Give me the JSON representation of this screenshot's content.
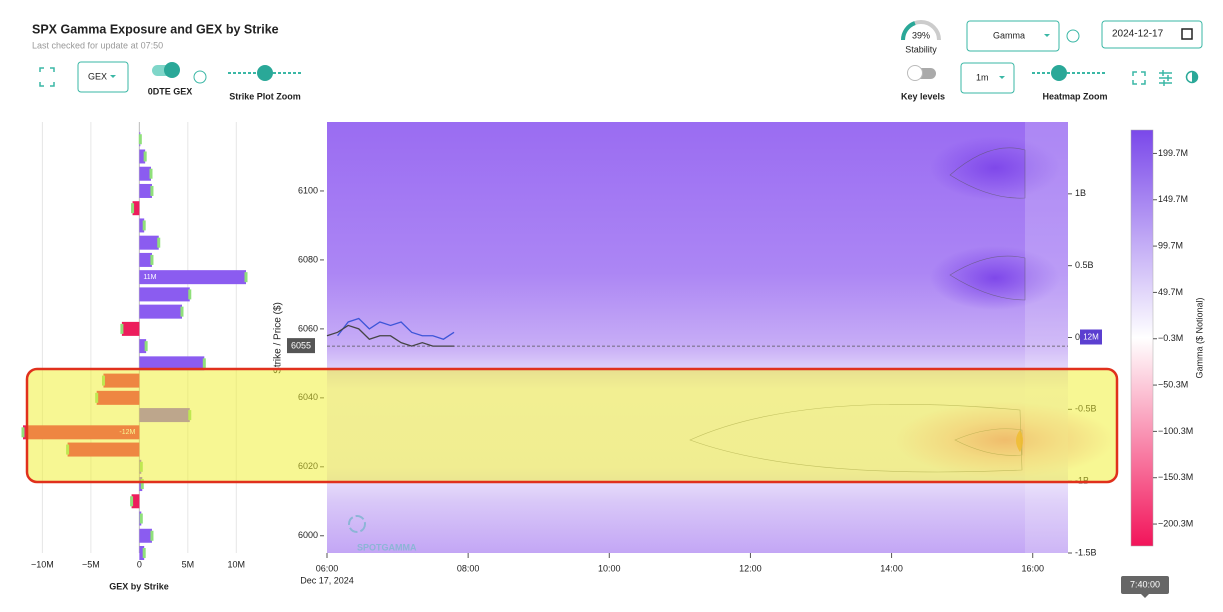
{
  "header": {
    "title": "SPX Gamma Exposure and GEX by Strike",
    "subtitle": "Last checked for update at 07:50"
  },
  "controls": {
    "gex_select": "GEX",
    "odte_label": "0DTE GEX",
    "strike_zoom_label": "Strike Plot Zoom",
    "stability": {
      "value": 39,
      "label": "39%"
    },
    "stability_label": "Stability",
    "gamma_select": "Gamma",
    "date": "2024-12-17",
    "key_levels_label": "Key levels",
    "interval_select": "1m",
    "heatmap_zoom_label": "Heatmap Zoom"
  },
  "gex_chart": {
    "type": "bar",
    "x_label": "GEX by Strike",
    "strikes": [
      6115,
      6110,
      6105,
      6100,
      6095,
      6090,
      6085,
      6080,
      6075,
      6070,
      6065,
      6060,
      6055,
      6050,
      6045,
      6040,
      6035,
      6030,
      6025,
      6020,
      6015,
      6010,
      6005,
      6000,
      5995
    ],
    "values": [
      0.1,
      0.6,
      1.2,
      1.3,
      -0.7,
      0.5,
      2,
      1.3,
      11,
      5.2,
      4.4,
      -1.8,
      0.7,
      6.7,
      -3.7,
      -4.4,
      5.2,
      -12,
      -7.4,
      0.2,
      0.3,
      -0.8,
      0.2,
      1.3,
      0.5
    ],
    "value_labels": [
      null,
      null,
      null,
      null,
      null,
      null,
      null,
      null,
      "11M",
      null,
      null,
      null,
      null,
      null,
      null,
      null,
      null,
      "-12M",
      null,
      null,
      null,
      null,
      null,
      null,
      null
    ],
    "positive_color": "#8b5cf0",
    "negative_color": "#ec1d5c",
    "xlim": [
      -12,
      11
    ],
    "xticks": [
      {
        "value": -10,
        "label": "−10M"
      },
      {
        "value": -5,
        "label": "−5M"
      },
      0,
      {
        "value": 5,
        "label": "5M"
      },
      {
        "value": 10,
        "label": "10M"
      }
    ],
    "grid": true
  },
  "heatmap": {
    "type": "heatmap",
    "y_label": "Strike / Price ($)",
    "x_date": "Dec 17, 2024",
    "xlim": [
      6,
      16.5
    ],
    "xticks": [
      {
        "value": 6,
        "label": "06:00"
      },
      {
        "value": 8,
        "label": "08:00"
      },
      {
        "value": 10,
        "label": "10:00"
      },
      {
        "value": 12,
        "label": "12:00"
      },
      {
        "value": 14,
        "label": "14:00"
      },
      {
        "value": 16,
        "label": "16:00"
      }
    ],
    "ylim": [
      5995,
      6120
    ],
    "yticks": [
      6000,
      6020,
      6040,
      6060,
      6080,
      6100
    ],
    "y2lim": [
      -1.5,
      1.5
    ],
    "y2ticks": [
      {
        "value": 1,
        "label": "1B"
      },
      {
        "value": 0.5,
        "label": "0.5B"
      },
      0,
      {
        "value": -0.5,
        "label": "-0.5B"
      },
      {
        "value": -1,
        "label": "-1B"
      },
      {
        "value": -1.5,
        "label": "-1.5B"
      }
    ],
    "current_price": 6055,
    "net_gex_label": "12M",
    "price_x": [
      6.0,
      6.15,
      6.3,
      6.45,
      6.6,
      6.75,
      6.9,
      7.05,
      7.2,
      7.35,
      7.5,
      7.65,
      7.8
    ],
    "price_lines": [
      {
        "color": "#3d55d8",
        "values": [
          null,
          6058,
          6062,
          6063,
          6060,
          6062,
          6061,
          6062,
          6059,
          6058,
          6058,
          6057,
          6059
        ]
      },
      {
        "color": "#444444",
        "values": [
          6058,
          6059,
          6061,
          6060,
          6057,
          6058,
          6058,
          6056,
          6055,
          6056,
          6055,
          6055,
          6055
        ]
      }
    ]
  },
  "colorbar": {
    "label": "Gamma ($ Notional)",
    "lim": [
      -224,
      225
    ],
    "ticks": [
      {
        "value": 199.7,
        "label": "199.7M"
      },
      {
        "value": 149.7,
        "label": "149.7M"
      },
      {
        "value": 99.7,
        "label": "99.7M"
      },
      {
        "value": 49.7,
        "label": "49.7M"
      },
      {
        "value": -0.3,
        "label": "−0.3M"
      },
      {
        "value": -50.3,
        "label": "−50.3M"
      },
      {
        "value": -100.3,
        "label": "−100.3M"
      },
      {
        "value": -150.3,
        "label": "−150.3M"
      },
      {
        "value": -200.3,
        "label": "−200.3M"
      }
    ]
  },
  "logo": "SPOTGAMMA",
  "time_tooltip": "7:40:00"
}
